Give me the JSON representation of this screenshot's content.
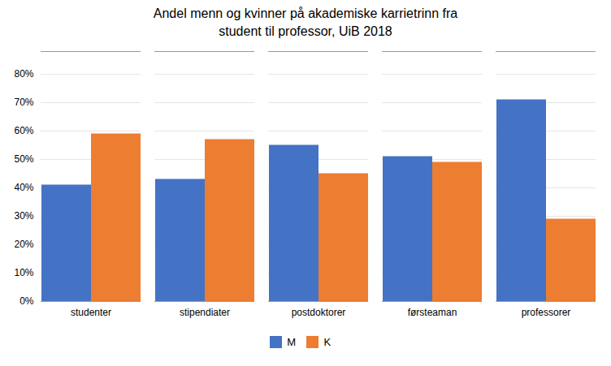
{
  "chart_data": {
    "type": "bar",
    "title": "Andel menn og kvinner på akademiske karrietrinn fra\nstudent til professor, UiB 2018",
    "categories": [
      "studenter",
      "stipendiater",
      "postdoktorer",
      "førsteaman",
      "professorer"
    ],
    "series": [
      {
        "name": "M",
        "color": "#4472C4",
        "values": [
          0.41,
          0.43,
          0.55,
          0.51,
          0.71
        ]
      },
      {
        "name": "K",
        "color": "#ED7D31",
        "values": [
          0.59,
          0.57,
          0.45,
          0.49,
          0.29
        ]
      }
    ],
    "ylim": [
      0,
      0.88
    ],
    "yticks": [
      {
        "value": 0,
        "label": "0%"
      },
      {
        "value": 0.1,
        "label": "10%"
      },
      {
        "value": 0.2,
        "label": "20%"
      },
      {
        "value": 0.3,
        "label": "30%"
      },
      {
        "value": 0.4,
        "label": "40%"
      },
      {
        "value": 0.5,
        "label": "50%"
      },
      {
        "value": 0.6,
        "label": "60%"
      },
      {
        "value": 0.7,
        "label": "70%"
      },
      {
        "value": 0.8,
        "label": "80%"
      }
    ],
    "grid": true,
    "legend": "bottom"
  }
}
